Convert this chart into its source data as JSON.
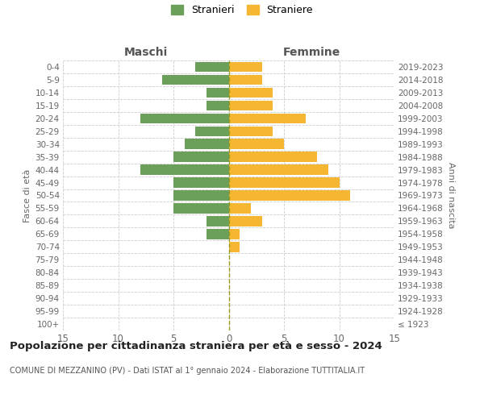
{
  "age_groups": [
    "100+",
    "95-99",
    "90-94",
    "85-89",
    "80-84",
    "75-79",
    "70-74",
    "65-69",
    "60-64",
    "55-59",
    "50-54",
    "45-49",
    "40-44",
    "35-39",
    "30-34",
    "25-29",
    "20-24",
    "15-19",
    "10-14",
    "5-9",
    "0-4"
  ],
  "birth_years": [
    "≤ 1923",
    "1924-1928",
    "1929-1933",
    "1934-1938",
    "1939-1943",
    "1944-1948",
    "1949-1953",
    "1954-1958",
    "1959-1963",
    "1964-1968",
    "1969-1973",
    "1974-1978",
    "1979-1983",
    "1984-1988",
    "1989-1993",
    "1994-1998",
    "1999-2003",
    "2004-2008",
    "2009-2013",
    "2014-2018",
    "2019-2023"
  ],
  "males": [
    0,
    0,
    0,
    0,
    0,
    0,
    0,
    2,
    2,
    5,
    5,
    5,
    8,
    5,
    4,
    3,
    8,
    2,
    2,
    6,
    3
  ],
  "females": [
    0,
    0,
    0,
    0,
    0,
    0,
    1,
    1,
    3,
    2,
    11,
    10,
    9,
    8,
    5,
    4,
    7,
    4,
    4,
    3,
    3
  ],
  "male_color": "#6b9f5a",
  "female_color": "#f5b731",
  "center_line_color": "#999922",
  "grid_color": "#cccccc",
  "title": "Popolazione per cittadinanza straniera per età e sesso - 2024",
  "subtitle": "COMUNE DI MEZZANINO (PV) - Dati ISTAT al 1° gennaio 2024 - Elaborazione TUTTITALIA.IT",
  "header_left": "Maschi",
  "header_right": "Femmine",
  "ylabel_left": "Fasce di età",
  "ylabel_right": "Anni di nascita",
  "legend_stranieri": "Stranieri",
  "legend_straniere": "Straniere",
  "xlim": 15,
  "background_color": "#ffffff",
  "bar_height": 0.78
}
